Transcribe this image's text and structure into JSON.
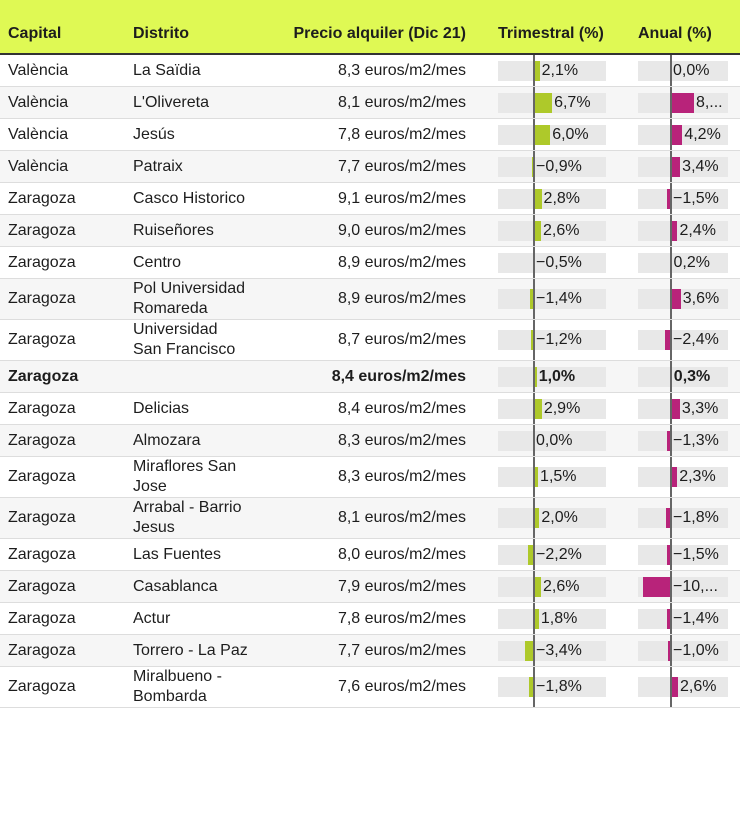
{
  "colors": {
    "header": "#dff954",
    "trimestral": "#aec92a",
    "anual": "#b8237a"
  },
  "headers": {
    "capital": "Capital",
    "distrito": "Distrito",
    "precio": "Precio alquiler (Dic 21)",
    "trimestral": "Trimestral (%)",
    "anual": "Anual (%)"
  },
  "rows": [
    {
      "capital": "València",
      "distrito": "La Saïdia",
      "precio": "8,3 euros/m2/mes",
      "trim": 2.1,
      "trim_label": "2,1%",
      "anual": 0.0,
      "anual_label": "0,0%"
    },
    {
      "capital": "València",
      "distrito": "L'Olivereta",
      "precio": "8,1 euros/m2/mes",
      "trim": 6.7,
      "trim_label": "6,7%",
      "anual": 8.5,
      "anual_label": "8,..."
    },
    {
      "capital": "València",
      "distrito": "Jesús",
      "precio": "7,8 euros/m2/mes",
      "trim": 6.0,
      "trim_label": "6,0%",
      "anual": 4.2,
      "anual_label": "4,2%"
    },
    {
      "capital": "València",
      "distrito": "Patraix",
      "precio": "7,7 euros/m2/mes",
      "trim": -0.9,
      "trim_label": "−0,9%",
      "anual": 3.4,
      "anual_label": "3,4%"
    },
    {
      "capital": "Zaragoza",
      "distrito": "Casco Historico",
      "precio": "9,1 euros/m2/mes",
      "trim": 2.8,
      "trim_label": "2,8%",
      "anual": -1.5,
      "anual_label": "−1,5%"
    },
    {
      "capital": "Zaragoza",
      "distrito": "Ruiseñores",
      "precio": "9,0 euros/m2/mes",
      "trim": 2.6,
      "trim_label": "2,6%",
      "anual": 2.4,
      "anual_label": "2,4%"
    },
    {
      "capital": "Zaragoza",
      "distrito": "Centro",
      "precio": "8,9 euros/m2/mes",
      "trim": -0.5,
      "trim_label": "−0,5%",
      "anual": 0.2,
      "anual_label": "0,2%"
    },
    {
      "capital": "Zaragoza",
      "distrito": "Pol Universidad Romareda",
      "precio": "8,9 euros/m2/mes",
      "trim": -1.4,
      "trim_label": "−1,4%",
      "anual": 3.6,
      "anual_label": "3,6%"
    },
    {
      "capital": "Zaragoza",
      "distrito": "Universidad San Francisco",
      "precio": "8,7 euros/m2/mes",
      "trim": -1.2,
      "trim_label": "−1,2%",
      "anual": -2.4,
      "anual_label": "−2,4%"
    },
    {
      "capital": "Zaragoza",
      "distrito": "",
      "precio": "8,4 euros/m2/mes",
      "trim": 1.0,
      "trim_label": "1,0%",
      "anual": 0.3,
      "anual_label": "0,3%",
      "bold": true
    },
    {
      "capital": "Zaragoza",
      "distrito": "Delicias",
      "precio": "8,4 euros/m2/mes",
      "trim": 2.9,
      "trim_label": "2,9%",
      "anual": 3.3,
      "anual_label": "3,3%"
    },
    {
      "capital": "Zaragoza",
      "distrito": "Almozara",
      "precio": "8,3 euros/m2/mes",
      "trim": 0.0,
      "trim_label": "0,0%",
      "anual": -1.3,
      "anual_label": "−1,3%"
    },
    {
      "capital": "Zaragoza",
      "distrito": "Miraflores San Jose",
      "precio": "8,3 euros/m2/mes",
      "trim": 1.5,
      "trim_label": "1,5%",
      "anual": 2.3,
      "anual_label": "2,3%"
    },
    {
      "capital": "Zaragoza",
      "distrito": "Arrabal - Barrio Jesus",
      "precio": "8,1 euros/m2/mes",
      "trim": 2.0,
      "trim_label": "2,0%",
      "anual": -1.8,
      "anual_label": "−1,8%"
    },
    {
      "capital": "Zaragoza",
      "distrito": "Las Fuentes",
      "precio": "8,0 euros/m2/mes",
      "trim": -2.2,
      "trim_label": "−2,2%",
      "anual": -1.5,
      "anual_label": "−1,5%"
    },
    {
      "capital": "Zaragoza",
      "distrito": "Casablanca",
      "precio": "7,9 euros/m2/mes",
      "trim": 2.6,
      "trim_label": "2,6%",
      "anual": -10.4,
      "anual_label": "−10,..."
    },
    {
      "capital": "Zaragoza",
      "distrito": "Actur",
      "precio": "7,8 euros/m2/mes",
      "trim": 1.8,
      "trim_label": "1,8%",
      "anual": -1.4,
      "anual_label": "−1,4%"
    },
    {
      "capital": "Zaragoza",
      "distrito": "Torrero - La Paz",
      "precio": "7,7 euros/m2/mes",
      "trim": -3.4,
      "trim_label": "−3,4%",
      "anual": -1.0,
      "anual_label": "−1,0%"
    },
    {
      "capital": "Zaragoza",
      "distrito": "Miralbueno - Bombarda",
      "precio": "7,6 euros/m2/mes",
      "trim": -1.8,
      "trim_label": "−1,8%",
      "anual": 2.6,
      "anual_label": "2,6%"
    }
  ]
}
